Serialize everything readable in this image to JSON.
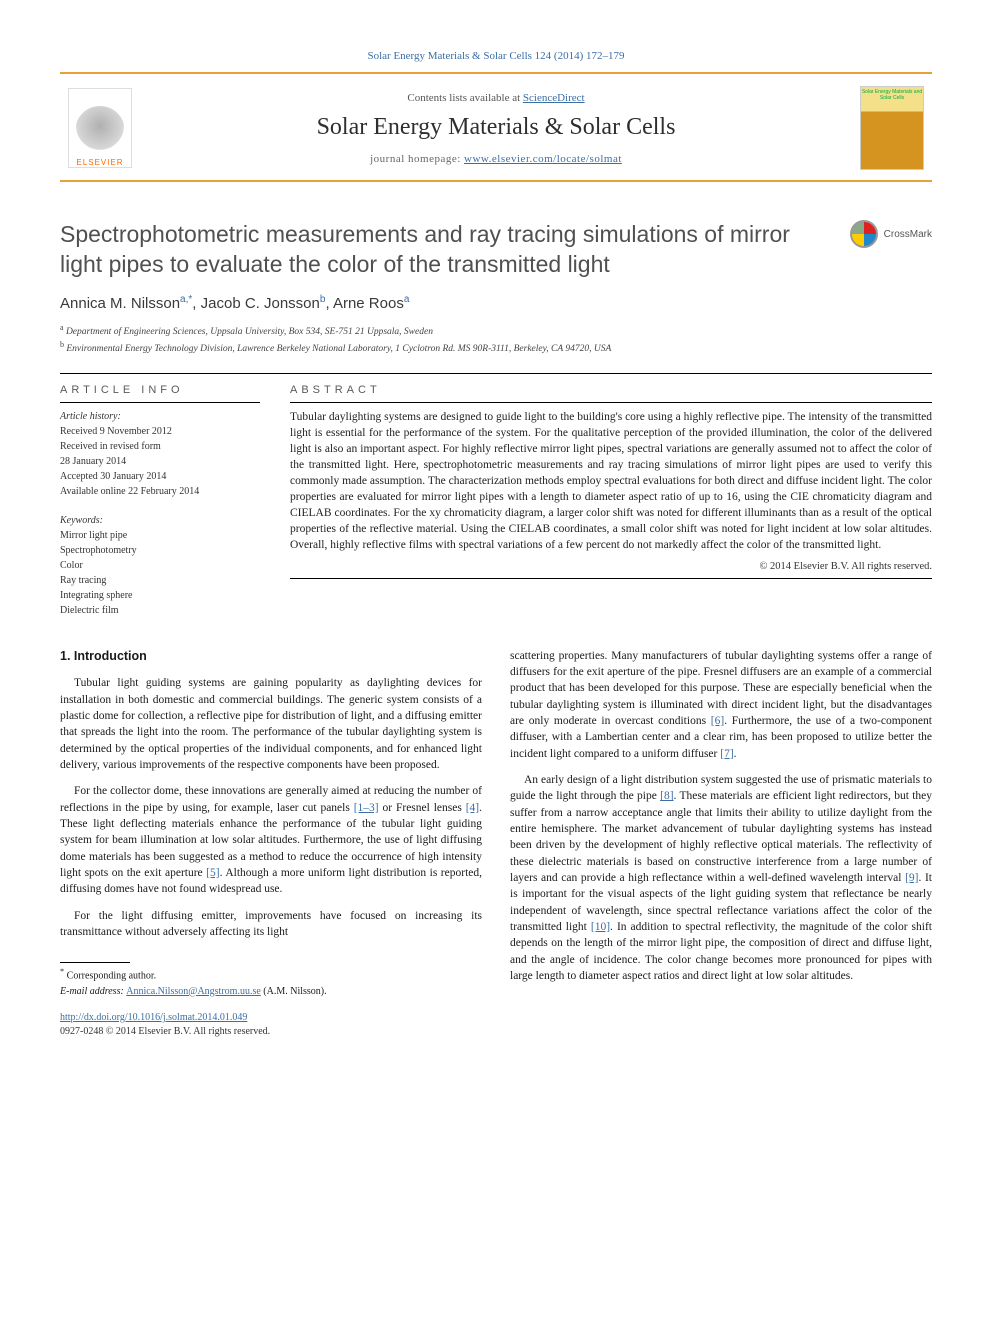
{
  "top_citation": "Solar Energy Materials & Solar Cells 124 (2014) 172–179",
  "masthead": {
    "contents_prefix": "Contents lists available at ",
    "contents_link": "ScienceDirect",
    "journal_name": "Solar Energy Materials & Solar Cells",
    "homepage_prefix": "journal homepage: ",
    "homepage_url": "www.elsevier.com/locate/solmat",
    "publisher_name": "ELSEVIER",
    "cover_text": "Solar Energy Materials and Solar Cells"
  },
  "crossmark_label": "CrossMark",
  "title": "Spectrophotometric measurements and ray tracing simulations of mirror light pipes to evaluate the color of the transmitted light",
  "authors_html": {
    "a1_name": "Annica M. Nilsson",
    "a1_sup": "a,",
    "a1_star": "*",
    "a2_name": "Jacob C. Jonsson",
    "a2_sup": "b",
    "a3_name": "Arne Roos",
    "a3_sup": "a"
  },
  "affiliations": {
    "a": "Department of Engineering Sciences, Uppsala University, Box 534, SE-751 21 Uppsala, Sweden",
    "b": "Environmental Energy Technology Division, Lawrence Berkeley National Laboratory, 1 Cyclotron Rd. MS 90R-3111, Berkeley, CA 94720, USA"
  },
  "article_info": {
    "heading": "ARTICLE INFO",
    "history_label": "Article history:",
    "received": "Received 9 November 2012",
    "revised_l1": "Received in revised form",
    "revised_l2": "28 January 2014",
    "accepted": "Accepted 30 January 2014",
    "online": "Available online 22 February 2014",
    "keywords_label": "Keywords:",
    "keywords": [
      "Mirror light pipe",
      "Spectrophotometry",
      "Color",
      "Ray tracing",
      "Integrating sphere",
      "Dielectric film"
    ]
  },
  "abstract": {
    "heading": "ABSTRACT",
    "body": "Tubular daylighting systems are designed to guide light to the building's core using a highly reflective pipe. The intensity of the transmitted light is essential for the performance of the system. For the qualitative perception of the provided illumination, the color of the delivered light is also an important aspect. For highly reflective mirror light pipes, spectral variations are generally assumed not to affect the color of the transmitted light. Here, spectrophotometric measurements and ray tracing simulations of mirror light pipes are used to verify this commonly made assumption. The characterization methods employ spectral evaluations for both direct and diffuse incident light. The color properties are evaluated for mirror light pipes with a length to diameter aspect ratio of up to 16, using the CIE chromaticity diagram and CIELAB coordinates. For the xy chromaticity diagram, a larger color shift was noted for different illuminants than as a result of the optical properties of the reflective material. Using the CIELAB coordinates, a small color shift was noted for light incident at low solar altitudes. Overall, highly reflective films with spectral variations of a few percent do not markedly affect the color of the transmitted light.",
    "copyright": "© 2014 Elsevier B.V. All rights reserved."
  },
  "section1": {
    "heading": "1.  Introduction",
    "p1": "Tubular light guiding systems are gaining popularity as daylighting devices for installation in both domestic and commercial buildings. The generic system consists of a plastic dome for collection, a reflective pipe for distribution of light, and a diffusing emitter that spreads the light into the room. The performance of the tubular daylighting system is determined by the optical properties of the individual components, and for enhanced light delivery, various improvements of the respective components have been proposed.",
    "p2a": "For the collector dome, these innovations are generally aimed at reducing the number of reflections in the pipe by using, for example, laser cut panels ",
    "p2_ref1": "[1–3]",
    "p2b": " or Fresnel lenses ",
    "p2_ref2": "[4]",
    "p2c": ". These light deflecting materials enhance the performance of the tubular light guiding system for beam illumination at low solar altitudes. Furthermore, the use of light diffusing dome materials has been suggested as a method to reduce the occurrence of high intensity light spots on the exit aperture ",
    "p2_ref3": "[5]",
    "p2d": ". Although a more uniform light distribution is reported, diffusing domes have not found widespread use.",
    "p3": "For the light diffusing emitter, improvements have focused on increasing its transmittance without adversely affecting its light",
    "p4a": "scattering properties. Many manufacturers of tubular daylighting systems offer a range of diffusers for the exit aperture of the pipe. Fresnel diffusers are an example of a commercial product that has been developed for this purpose. These are especially beneficial when the tubular daylighting system is illuminated with direct incident light, but the disadvantages are only moderate in overcast conditions ",
    "p4_ref1": "[6]",
    "p4b": ". Furthermore, the use of a two-component diffuser, with a Lambertian center and a clear rim, has been proposed to utilize better the incident light compared to a uniform diffuser ",
    "p4_ref2": "[7]",
    "p4c": ".",
    "p5a": "An early design of a light distribution system suggested the use of prismatic materials to guide the light through the pipe ",
    "p5_ref1": "[8]",
    "p5b": ". These materials are efficient light redirectors, but they suffer from a narrow acceptance angle that limits their ability to utilize daylight from the entire hemisphere. The market advancement of tubular daylighting systems has instead been driven by the development of highly reflective optical materials. The reflectivity of these dielectric materials is based on constructive interference from a large number of layers and can provide a high reflectance within a well-defined wavelength interval ",
    "p5_ref2": "[9]",
    "p5c": ". It is important for the visual aspects of the light guiding system that reflectance be nearly independent of wavelength, since spectral reflectance variations affect the color of the transmitted light ",
    "p5_ref3": "[10]",
    "p5d": ". In addition to spectral reflectivity, the magnitude of the color shift depends on the length of the mirror light pipe, the composition of direct and diffuse light, and the angle of incidence. The color change becomes more pronounced for pipes with large length to diameter aspect ratios and direct light at low solar altitudes."
  },
  "footer": {
    "corr_symbol": "*",
    "corr_label": "Corresponding author.",
    "email_label": "E-mail address: ",
    "email": "Annica.Nilsson@Angstrom.uu.se",
    "email_suffix": " (A.M. Nilsson).",
    "doi_url": "http://dx.doi.org/10.1016/j.solmat.2014.01.049",
    "issn_line": "0927-0248 © 2014 Elsevier B.V. All rights reserved."
  },
  "colors": {
    "link": "#3b6ea5",
    "orange_rule": "#e8a13a",
    "title_gray": "#505050",
    "body_text": "#1a1a1a"
  }
}
